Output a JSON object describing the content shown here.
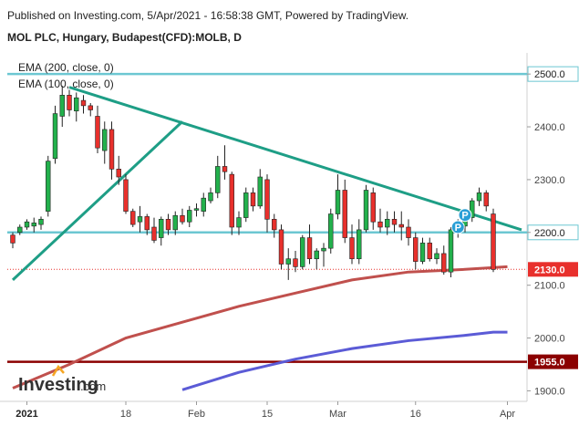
{
  "header": {
    "published": "Published on Investing.com, 5/Apr/2021 - 16:58:38 GMT, Powered by TradingView.",
    "instrument": "MOL PLC, Hungary, Budapest(CFD):MOLB, D"
  },
  "logo": {
    "name": "Investing",
    "suffix": ".com"
  },
  "colors": {
    "up": "#22b14c",
    "down": "#e8302c",
    "trend": "#1e9e86",
    "ema100": "#c0504d",
    "ema200": "#5b5bd6",
    "hline_cyan": "#6cc7d2",
    "hline_support": "#8b0000",
    "price_label": "#e8302c"
  },
  "chart_data": {
    "type": "candlestick",
    "title": "MOL PLC, Hungary, Budapest(CFD):MOLB, D",
    "ylim": [
      1880,
      2540
    ],
    "yticks": [
      1900,
      2000,
      2100,
      2200,
      2300,
      2400,
      2500
    ],
    "xticks": [
      {
        "label": "2021",
        "i": 2
      },
      {
        "label": "18",
        "i": 16
      },
      {
        "label": "Feb",
        "i": 26
      },
      {
        "label": "15",
        "i": 36
      },
      {
        "label": "Mar",
        "i": 46
      },
      {
        "label": "16",
        "i": 57
      },
      {
        "label": "Apr",
        "i": 70
      }
    ],
    "legend": [
      "EMA (200, close, 0)",
      "EMA (100, close, 0)"
    ],
    "candles": [
      [
        2195,
        2200,
        2170,
        2180
      ],
      [
        2200,
        2215,
        2195,
        2210
      ],
      [
        2210,
        2225,
        2205,
        2220
      ],
      [
        2212,
        2228,
        2200,
        2218
      ],
      [
        2215,
        2230,
        2205,
        2225
      ],
      [
        2240,
        2345,
        2230,
        2335
      ],
      [
        2340,
        2440,
        2330,
        2425
      ],
      [
        2420,
        2478,
        2400,
        2460
      ],
      [
        2460,
        2470,
        2420,
        2432
      ],
      [
        2430,
        2465,
        2410,
        2455
      ],
      [
        2450,
        2460,
        2425,
        2440
      ],
      [
        2440,
        2445,
        2420,
        2432
      ],
      [
        2420,
        2440,
        2350,
        2360
      ],
      [
        2355,
        2410,
        2330,
        2395
      ],
      [
        2395,
        2410,
        2300,
        2320
      ],
      [
        2320,
        2345,
        2290,
        2305
      ],
      [
        2300,
        2310,
        2235,
        2240
      ],
      [
        2240,
        2245,
        2210,
        2215
      ],
      [
        2220,
        2250,
        2200,
        2230
      ],
      [
        2230,
        2235,
        2195,
        2205
      ],
      [
        2210,
        2228,
        2180,
        2185
      ],
      [
        2190,
        2230,
        2175,
        2225
      ],
      [
        2225,
        2235,
        2195,
        2205
      ],
      [
        2205,
        2240,
        2195,
        2232
      ],
      [
        2232,
        2245,
        2215,
        2220
      ],
      [
        2220,
        2250,
        2210,
        2242
      ],
      [
        2242,
        2255,
        2230,
        2245
      ],
      [
        2240,
        2275,
        2230,
        2265
      ],
      [
        2260,
        2285,
        2255,
        2275
      ],
      [
        2275,
        2345,
        2265,
        2325
      ],
      [
        2325,
        2365,
        2300,
        2315
      ],
      [
        2310,
        2315,
        2195,
        2210
      ],
      [
        2210,
        2240,
        2195,
        2228
      ],
      [
        2228,
        2285,
        2220,
        2275
      ],
      [
        2275,
        2285,
        2240,
        2250
      ],
      [
        2250,
        2320,
        2245,
        2305
      ],
      [
        2300,
        2310,
        2200,
        2225
      ],
      [
        2225,
        2235,
        2190,
        2205
      ],
      [
        2205,
        2215,
        2130,
        2140
      ],
      [
        2140,
        2170,
        2110,
        2150
      ],
      [
        2150,
        2165,
        2125,
        2135
      ],
      [
        2135,
        2195,
        2130,
        2190
      ],
      [
        2190,
        2215,
        2140,
        2150
      ],
      [
        2150,
        2170,
        2130,
        2165
      ],
      [
        2165,
        2180,
        2135,
        2170
      ],
      [
        2170,
        2245,
        2160,
        2235
      ],
      [
        2235,
        2310,
        2225,
        2280
      ],
      [
        2280,
        2300,
        2180,
        2190
      ],
      [
        2190,
        2215,
        2140,
        2150
      ],
      [
        2150,
        2225,
        2140,
        2205
      ],
      [
        2205,
        2290,
        2200,
        2280
      ],
      [
        2275,
        2285,
        2205,
        2220
      ],
      [
        2220,
        2245,
        2200,
        2210
      ],
      [
        2210,
        2240,
        2195,
        2225
      ],
      [
        2225,
        2240,
        2200,
        2215
      ],
      [
        2215,
        2240,
        2185,
        2210
      ],
      [
        2210,
        2225,
        2175,
        2190
      ],
      [
        2190,
        2200,
        2130,
        2145
      ],
      [
        2145,
        2190,
        2140,
        2180
      ],
      [
        2180,
        2190,
        2145,
        2150
      ],
      [
        2150,
        2170,
        2140,
        2160
      ],
      [
        2160,
        2175,
        2120,
        2125
      ],
      [
        2125,
        2210,
        2115,
        2205
      ],
      [
        2205,
        2225,
        2190,
        2215
      ],
      [
        2212,
        2232,
        2200,
        2225
      ],
      [
        2228,
        2265,
        2220,
        2260
      ],
      [
        2260,
        2285,
        2250,
        2275
      ],
      [
        2275,
        2280,
        2240,
        2250
      ],
      [
        2235,
        2245,
        2125,
        2130
      ]
    ],
    "ema100": [
      [
        0,
        1905
      ],
      [
        8,
        1950
      ],
      [
        16,
        2000
      ],
      [
        24,
        2030
      ],
      [
        32,
        2060
      ],
      [
        40,
        2085
      ],
      [
        48,
        2110
      ],
      [
        56,
        2125
      ],
      [
        64,
        2130
      ],
      [
        70,
        2135
      ]
    ],
    "ema200": [
      [
        24,
        1902
      ],
      [
        32,
        1935
      ],
      [
        40,
        1960
      ],
      [
        48,
        1980
      ],
      [
        56,
        1995
      ],
      [
        64,
        2005
      ],
      [
        68,
        2011
      ],
      [
        70,
        2011
      ]
    ],
    "trendlines": [
      {
        "from": [
          0,
          2110
        ],
        "to": [
          24,
          2410
        ]
      },
      {
        "from": [
          8,
          2475
        ],
        "to": [
          72,
          2205
        ]
      }
    ],
    "hlines": [
      {
        "value": 2500,
        "label": "2500.0",
        "color": "#6cc7d2"
      },
      {
        "value": 2200,
        "label": "2200.0",
        "color": "#6cc7d2"
      },
      {
        "value": 1955,
        "label": "1955.0",
        "color": "#8b0000"
      }
    ],
    "last_price": {
      "value": 2130,
      "label": "2130.0"
    },
    "markers": [
      {
        "i": 63,
        "value": 2210,
        "label": "P"
      },
      {
        "i": 64,
        "value": 2233,
        "label": "P"
      }
    ]
  }
}
